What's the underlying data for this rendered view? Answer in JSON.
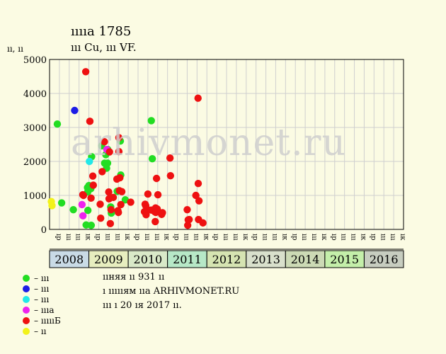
{
  "header": {
    "title": "ııııa 1785",
    "subtitle": "ııı Cu, ııı VF.",
    "ylabel": "ıı, ıı",
    "watermark": "arhivmonet.ru"
  },
  "legend": [
    {
      "label": "– ııı",
      "color": "#22dd22"
    },
    {
      "label": "– ııı",
      "color": "#1c1ce6"
    },
    {
      "label": "– ııı",
      "color": "#22e8e8"
    },
    {
      "label": "– ıııa",
      "color": "#ee22ee"
    },
    {
      "label": "– ıııııБ",
      "color": "#ee1111"
    },
    {
      "label": "– ıı",
      "color": "#f2f21a"
    }
  ],
  "notes": [
    "ııняя ıı 931 ıı",
    "ı ıııııям ııa ARHIVMONET.RU",
    "ııı ı 20 ıя 2017 ıı."
  ],
  "chart_data": {
    "type": "scatter",
    "ylim": [
      0,
      5000
    ],
    "yticks": [
      0,
      1000,
      2000,
      3000,
      4000,
      5000
    ],
    "grid": true,
    "quarter_labels": [
      "ıp",
      "ııı",
      "ııı",
      "ıк"
    ],
    "years": [
      {
        "label": "2008",
        "color": "#c9dbe6"
      },
      {
        "label": "2009",
        "color": "#e7eebf"
      },
      {
        "label": "2010",
        "color": "#d9e9c8"
      },
      {
        "label": "2011",
        "color": "#b7e8c7"
      },
      {
        "label": "2012",
        "color": "#d6e4b2"
      },
      {
        "label": "2013",
        "color": "#d9e0cc"
      },
      {
        "label": "2014",
        "color": "#ccdab5"
      },
      {
        "label": "2015",
        "color": "#c4efaa"
      },
      {
        "label": "2016",
        "color": "#c7cdc0"
      }
    ],
    "series": [
      {
        "color": "#22dd22",
        "points": [
          [
            0.79,
            3100
          ],
          [
            1.23,
            780
          ],
          [
            2.42,
            580
          ],
          [
            3.72,
            130
          ],
          [
            3.86,
            1230
          ],
          [
            3.88,
            1100
          ],
          [
            3.9,
            560
          ],
          [
            4.0,
            1290
          ],
          [
            4.2,
            1200
          ],
          [
            4.24,
            120
          ],
          [
            4.28,
            2140
          ],
          [
            5.3,
            2460
          ],
          [
            5.6,
            1950
          ],
          [
            5.72,
            2200
          ],
          [
            5.8,
            1800
          ],
          [
            5.9,
            1950
          ],
          [
            5.92,
            2350
          ],
          [
            6.22,
            660
          ],
          [
            6.28,
            480
          ],
          [
            6.88,
            1120
          ],
          [
            7.2,
            2600
          ],
          [
            7.24,
            1600
          ],
          [
            7.7,
            870
          ],
          [
            10.35,
            3200
          ],
          [
            10.45,
            2080
          ]
        ]
      },
      {
        "color": "#1c1ce6",
        "points": [
          [
            2.55,
            3500
          ]
        ]
      },
      {
        "color": "#22e8e8",
        "points": [
          [
            4.05,
            2000
          ]
        ]
      },
      {
        "color": "#ee22ee",
        "points": [
          [
            3.3,
            730
          ],
          [
            3.4,
            400
          ],
          [
            5.82,
            2350
          ]
        ]
      },
      {
        "color": "#ee1111",
        "points": [
          [
            3.38,
            1020
          ],
          [
            3.45,
            1000
          ],
          [
            3.68,
            4640
          ],
          [
            4.1,
            3180
          ],
          [
            4.22,
            920
          ],
          [
            4.4,
            1570
          ],
          [
            4.45,
            1300
          ],
          [
            5.15,
            740
          ],
          [
            5.2,
            330
          ],
          [
            5.35,
            1700
          ],
          [
            5.58,
            2580
          ],
          [
            6.02,
            1100
          ],
          [
            6.05,
            900
          ],
          [
            6.1,
            2280
          ],
          [
            6.18,
            170
          ],
          [
            6.25,
            580
          ],
          [
            6.48,
            940
          ],
          [
            6.85,
            1480
          ],
          [
            6.95,
            550
          ],
          [
            7.0,
            500
          ],
          [
            7.05,
            2290
          ],
          [
            7.05,
            2700
          ],
          [
            7.1,
            1140
          ],
          [
            7.15,
            1520
          ],
          [
            7.25,
            730
          ],
          [
            7.35,
            1110
          ],
          [
            8.25,
            800
          ],
          [
            9.65,
            520
          ],
          [
            9.72,
            740
          ],
          [
            9.78,
            700
          ],
          [
            9.82,
            430
          ],
          [
            9.88,
            600
          ],
          [
            10.0,
            1040
          ],
          [
            10.35,
            570
          ],
          [
            10.7,
            520
          ],
          [
            10.75,
            230
          ],
          [
            10.78,
            630
          ],
          [
            10.8,
            500
          ],
          [
            10.88,
            1500
          ],
          [
            10.95,
            600
          ],
          [
            11.02,
            1020
          ],
          [
            11.4,
            440
          ],
          [
            11.48,
            490
          ],
          [
            12.25,
            2100
          ],
          [
            12.3,
            1580
          ],
          [
            14.0,
            580
          ],
          [
            14.05,
            120
          ],
          [
            14.1,
            280
          ],
          [
            14.2,
            290
          ],
          [
            14.88,
            1000
          ],
          [
            15.1,
            3860
          ],
          [
            15.12,
            1350
          ],
          [
            15.15,
            290
          ],
          [
            15.2,
            840
          ],
          [
            15.6,
            190
          ]
        ]
      },
      {
        "color": "#f2f21a",
        "points": [
          [
            0.18,
            820
          ],
          [
            0.25,
            700
          ]
        ]
      }
    ]
  }
}
